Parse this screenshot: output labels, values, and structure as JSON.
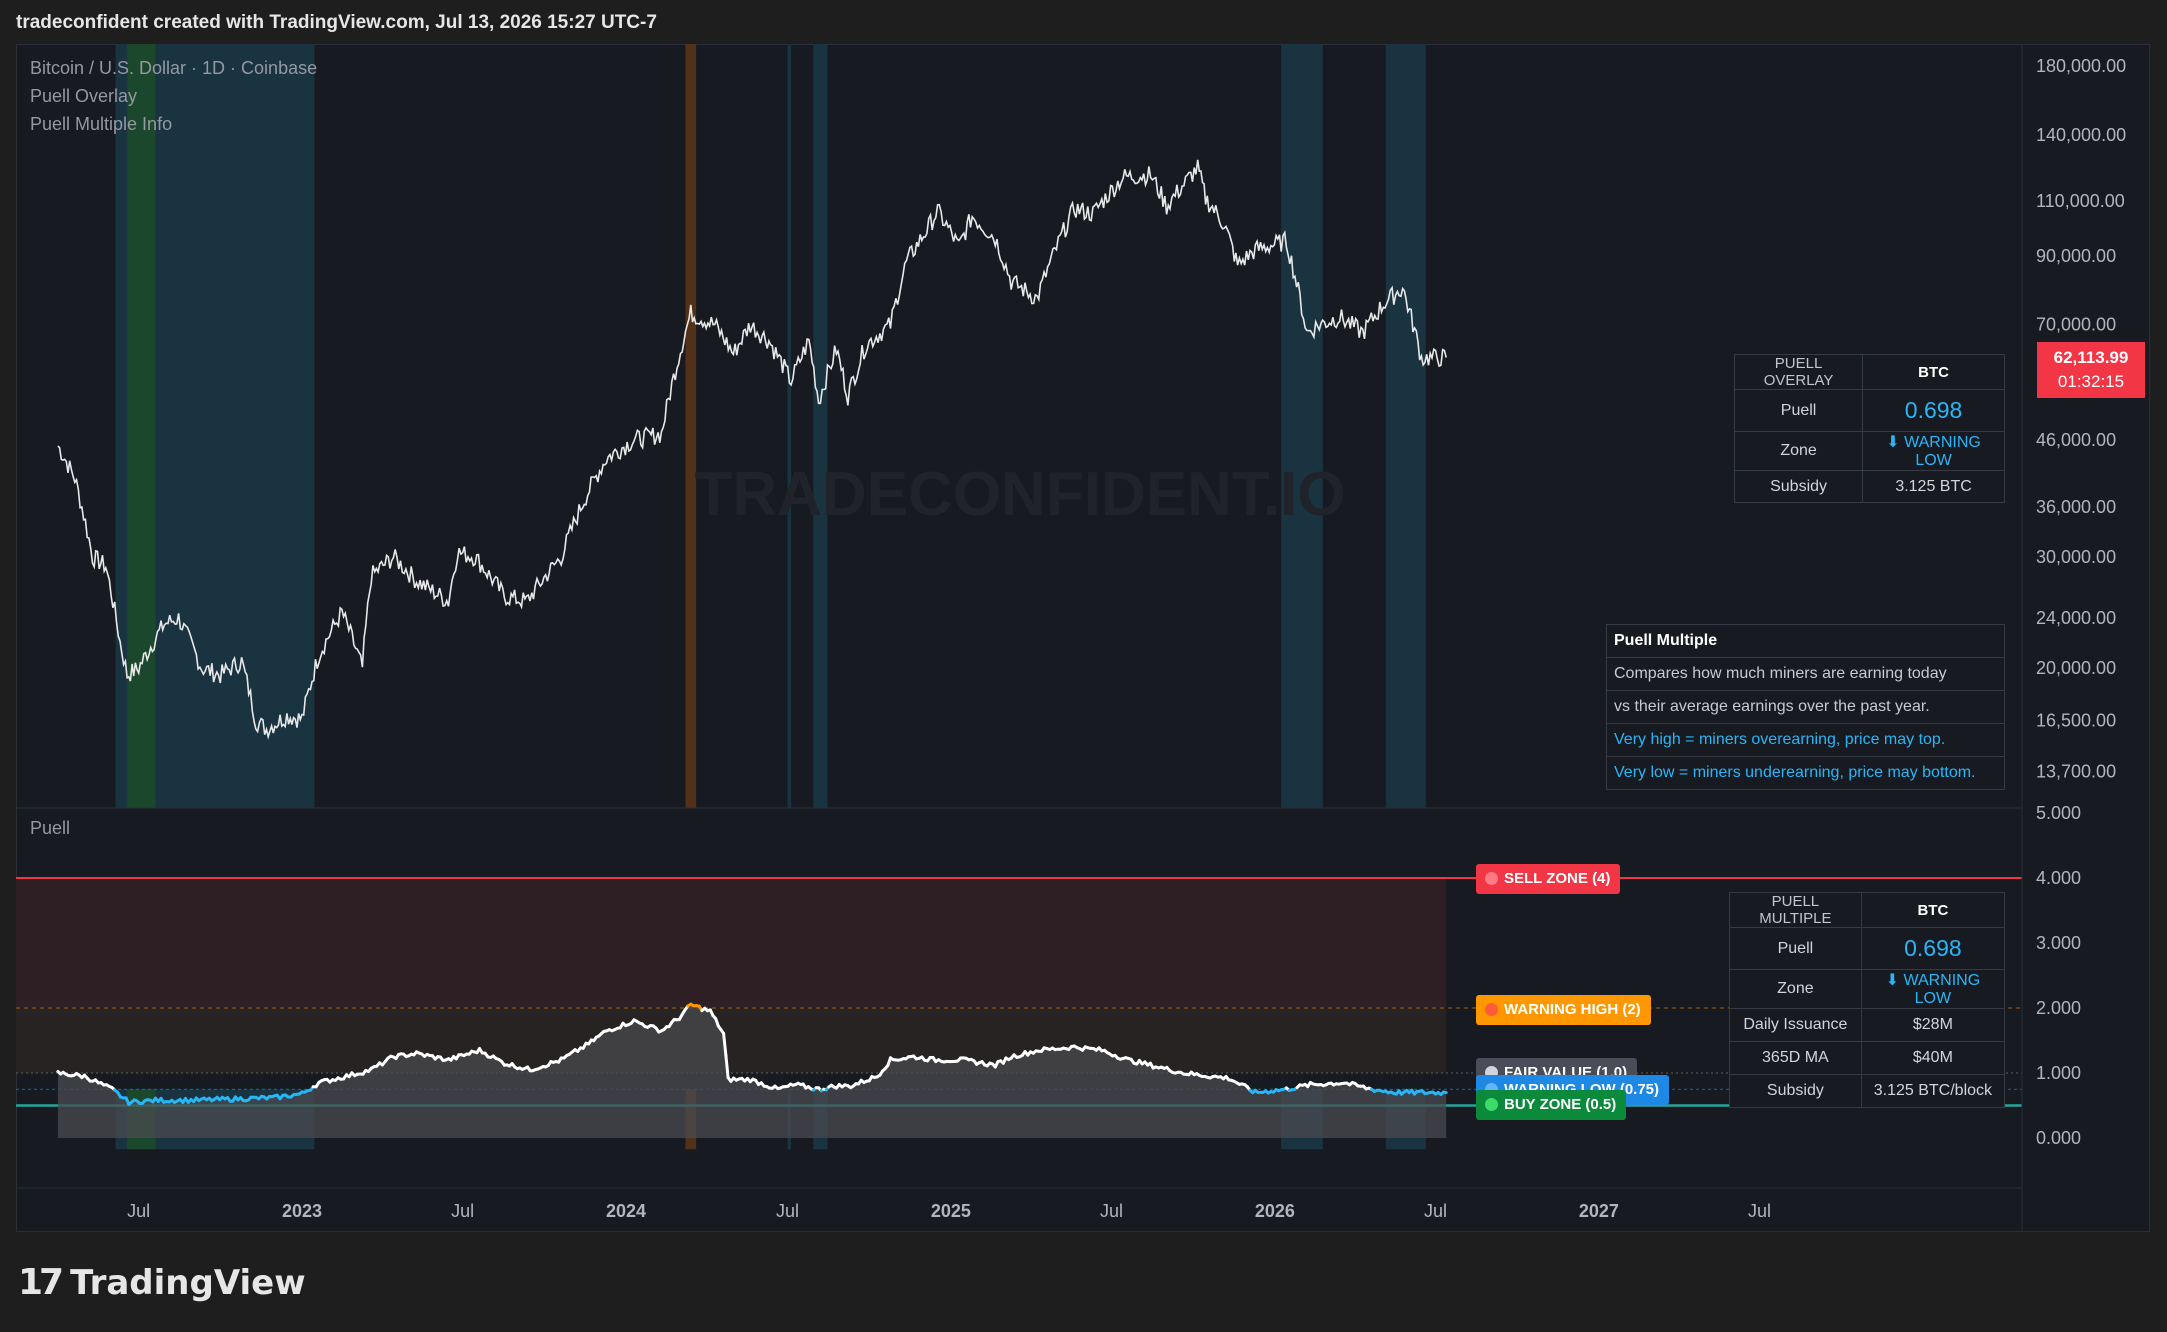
{
  "header": {
    "text": "tradeconfident created with TradingView.com, Jul 13, 2026 15:27 UTC-7"
  },
  "legend": {
    "symbol": "Bitcoin / U.S. Dollar · 1D · Coinbase",
    "indicator1": "Puell Overlay",
    "indicator2": "Puell Multiple Info"
  },
  "watermark": "TRADECONFIDENT.IO",
  "brand": "TradingView",
  "price_label": {
    "value": "62,113.99",
    "countdown": "01:32:15"
  },
  "overlay_table": {
    "title": "PUELL OVERLAY",
    "asset": "BTC",
    "rows": [
      {
        "label": "Puell",
        "value": "0.698"
      },
      {
        "label": "Zone",
        "value": "⬇ WARNING LOW"
      },
      {
        "label": "Subsidy",
        "value": "3.125 BTC"
      }
    ]
  },
  "info_table": {
    "title": "Puell Multiple",
    "line1": "Compares how much miners are earning today",
    "line2": "vs their average earnings over the past year.",
    "line3": "Very high = miners overearning, price may top.",
    "line4": "Very low = miners underearning, price may bottom."
  },
  "multiple_table": {
    "title": "PUELL MULTIPLE",
    "asset": "BTC",
    "rows": [
      {
        "label": "Puell",
        "value": "0.698"
      },
      {
        "label": "Zone",
        "value": "⬇ WARNING LOW"
      },
      {
        "label": "Daily Issuance",
        "value": "$28M"
      },
      {
        "label": "365D MA",
        "value": "$40M"
      },
      {
        "label": "Subsidy",
        "value": "3.125 BTC/block"
      }
    ]
  },
  "zone_labels": {
    "sell": "SELL ZONE (4)",
    "warning_high": "WARNING HIGH (2)",
    "fair": "FAIR VALUE (1.0)",
    "warning_low": "WARNING LOW (0.75)",
    "buy": "BUY ZONE (0.5)"
  },
  "colors": {
    "sell": "#f23645",
    "warning_high": "#ff9800",
    "fair": "#787b86",
    "warning_low": "#2196f3",
    "buy": "#089981",
    "low_line": "#29b6f6",
    "buy_line": "#26a69a",
    "band_low": "#1a3644",
    "band_buy": "#1c4a2a",
    "band_high": "#5a3418"
  },
  "chart_data": [
    {
      "type": "line",
      "panel": "price",
      "title": "Bitcoin / U.S. Dollar · 1D · Coinbase",
      "scale": "log",
      "ylim": [
        12000,
        195000
      ],
      "y_ticks": [
        "180,000.00",
        "140,000.00",
        "110,000.00",
        "90,000.00",
        "70,000.00",
        "46,000.00",
        "36,000.00",
        "30,000.00",
        "24,000.00",
        "20,000.00",
        "16,500.00",
        "13,700.00"
      ],
      "x_ticks": [
        "Jul",
        "2023",
        "Jul",
        "2024",
        "Jul",
        "2025",
        "Jul",
        "2026",
        "Jul",
        "2027",
        "Jul"
      ],
      "series": [
        {
          "x": [
            "2022-04-01",
            "2022-04-20",
            "2022-05-10",
            "2022-05-25",
            "2022-06-10",
            "2022-06-18",
            "2022-07-01",
            "2022-07-30",
            "2022-08-15",
            "2022-09-10",
            "2022-10-01",
            "2022-10-25",
            "2022-11-10",
            "2022-11-22",
            "2022-12-15",
            "2023-01-01",
            "2023-01-20",
            "2023-02-15",
            "2023-03-10",
            "2023-03-20",
            "2023-04-14",
            "2023-05-10",
            "2023-06-15",
            "2023-06-25",
            "2023-07-15",
            "2023-08-17",
            "2023-09-11",
            "2023-10-20",
            "2023-11-15",
            "2023-12-10",
            "2024-01-10",
            "2024-02-10",
            "2024-03-14",
            "2024-04-10",
            "2024-05-01",
            "2024-05-20",
            "2024-06-10",
            "2024-07-05",
            "2024-07-25",
            "2024-08-05",
            "2024-08-25",
            "2024-09-07",
            "2024-09-27",
            "2024-10-25",
            "2024-11-12",
            "2024-12-05",
            "2024-12-17",
            "2025-01-10",
            "2025-01-25",
            "2025-02-20",
            "2025-03-10",
            "2025-04-08",
            "2025-05-20",
            "2025-06-10",
            "2025-07-14",
            "2025-08-14",
            "2025-09-01",
            "2025-10-06",
            "2025-10-15",
            "2025-11-05",
            "2025-11-20",
            "2025-12-10",
            "2026-01-14",
            "2026-02-06",
            "2026-02-20",
            "2026-03-15",
            "2026-04-10",
            "2026-05-05",
            "2026-05-25",
            "2026-06-15",
            "2026-07-13"
          ],
          "values": [
            45000,
            40000,
            30000,
            29000,
            22000,
            19500,
            20000,
            23500,
            24000,
            20000,
            19500,
            20500,
            16500,
            16000,
            16800,
            16600,
            21000,
            24500,
            20000,
            28000,
            30000,
            27500,
            25500,
            30500,
            30000,
            26000,
            25500,
            30000,
            37000,
            43000,
            46000,
            47000,
            73000,
            70000,
            63000,
            70000,
            66000,
            57000,
            66000,
            53000,
            64000,
            54000,
            65000,
            70000,
            88000,
            99000,
            106000,
            93000,
            104000,
            96000,
            82000,
            77000,
            107000,
            105000,
            120000,
            121000,
            108000,
            124000,
            111000,
            101000,
            87000,
            92000,
            95000,
            68000,
            70000,
            72000,
            68000,
            76000,
            80000,
            62000,
            62114
          ]
        }
      ]
    },
    {
      "type": "line",
      "panel": "puell",
      "title": "Puell",
      "ylim": [
        0,
        5
      ],
      "y_ticks": [
        "5.000",
        "4.000",
        "3.000",
        "2.000",
        "1.000",
        "0.000"
      ],
      "thresholds": [
        {
          "name": "SELL ZONE (4)",
          "value": 4
        },
        {
          "name": "WARNING HIGH (2)",
          "value": 2
        },
        {
          "name": "FAIR VALUE (1.0)",
          "value": 1
        },
        {
          "name": "WARNING LOW (0.75)",
          "value": 0.75
        },
        {
          "name": "BUY ZONE (0.5)",
          "value": 0.5
        }
      ],
      "series": [
        {
          "x": [
            "2022-04-01",
            "2022-05-01",
            "2022-06-01",
            "2022-06-20",
            "2022-07-20",
            "2022-09-01",
            "2022-10-15",
            "2022-12-01",
            "2023-01-01",
            "2023-01-20",
            "2023-02-20",
            "2023-03-20",
            "2023-04-14",
            "2023-05-10",
            "2023-06-15",
            "2023-07-20",
            "2023-08-17",
            "2023-09-15",
            "2023-10-20",
            "2023-11-20",
            "2023-12-10",
            "2024-01-10",
            "2024-02-10",
            "2024-03-01",
            "2024-03-14",
            "2024-04-05",
            "2024-04-20",
            "2024-04-25",
            "2024-05-20",
            "2024-06-20",
            "2024-07-10",
            "2024-08-05",
            "2024-08-25",
            "2024-09-10",
            "2024-10-10",
            "2024-10-25",
            "2024-11-20",
            "2024-12-15",
            "2025-01-15",
            "2025-02-20",
            "2025-03-10",
            "2025-04-10",
            "2025-05-20",
            "2025-06-20",
            "2025-07-20",
            "2025-08-20",
            "2025-09-20",
            "2025-10-20",
            "2025-11-10",
            "2025-12-10",
            "2026-01-14",
            "2026-02-10",
            "2026-03-20",
            "2026-04-20",
            "2026-05-15",
            "2026-06-10",
            "2026-07-13"
          ],
          "values": [
            1.0,
            0.95,
            0.75,
            0.55,
            0.58,
            0.58,
            0.6,
            0.62,
            0.68,
            0.85,
            0.95,
            1.05,
            1.25,
            1.3,
            1.2,
            1.35,
            1.15,
            1.05,
            1.2,
            1.45,
            1.65,
            1.8,
            1.65,
            1.85,
            2.05,
            1.95,
            1.6,
            0.9,
            0.9,
            0.75,
            0.82,
            0.75,
            0.8,
            0.8,
            0.95,
            1.2,
            1.25,
            1.2,
            1.2,
            1.12,
            1.25,
            1.35,
            1.4,
            1.35,
            1.2,
            1.1,
            1.0,
            0.95,
            0.92,
            0.7,
            0.75,
            0.82,
            0.85,
            0.75,
            0.7,
            0.7,
            0.698
          ]
        }
      ]
    }
  ]
}
